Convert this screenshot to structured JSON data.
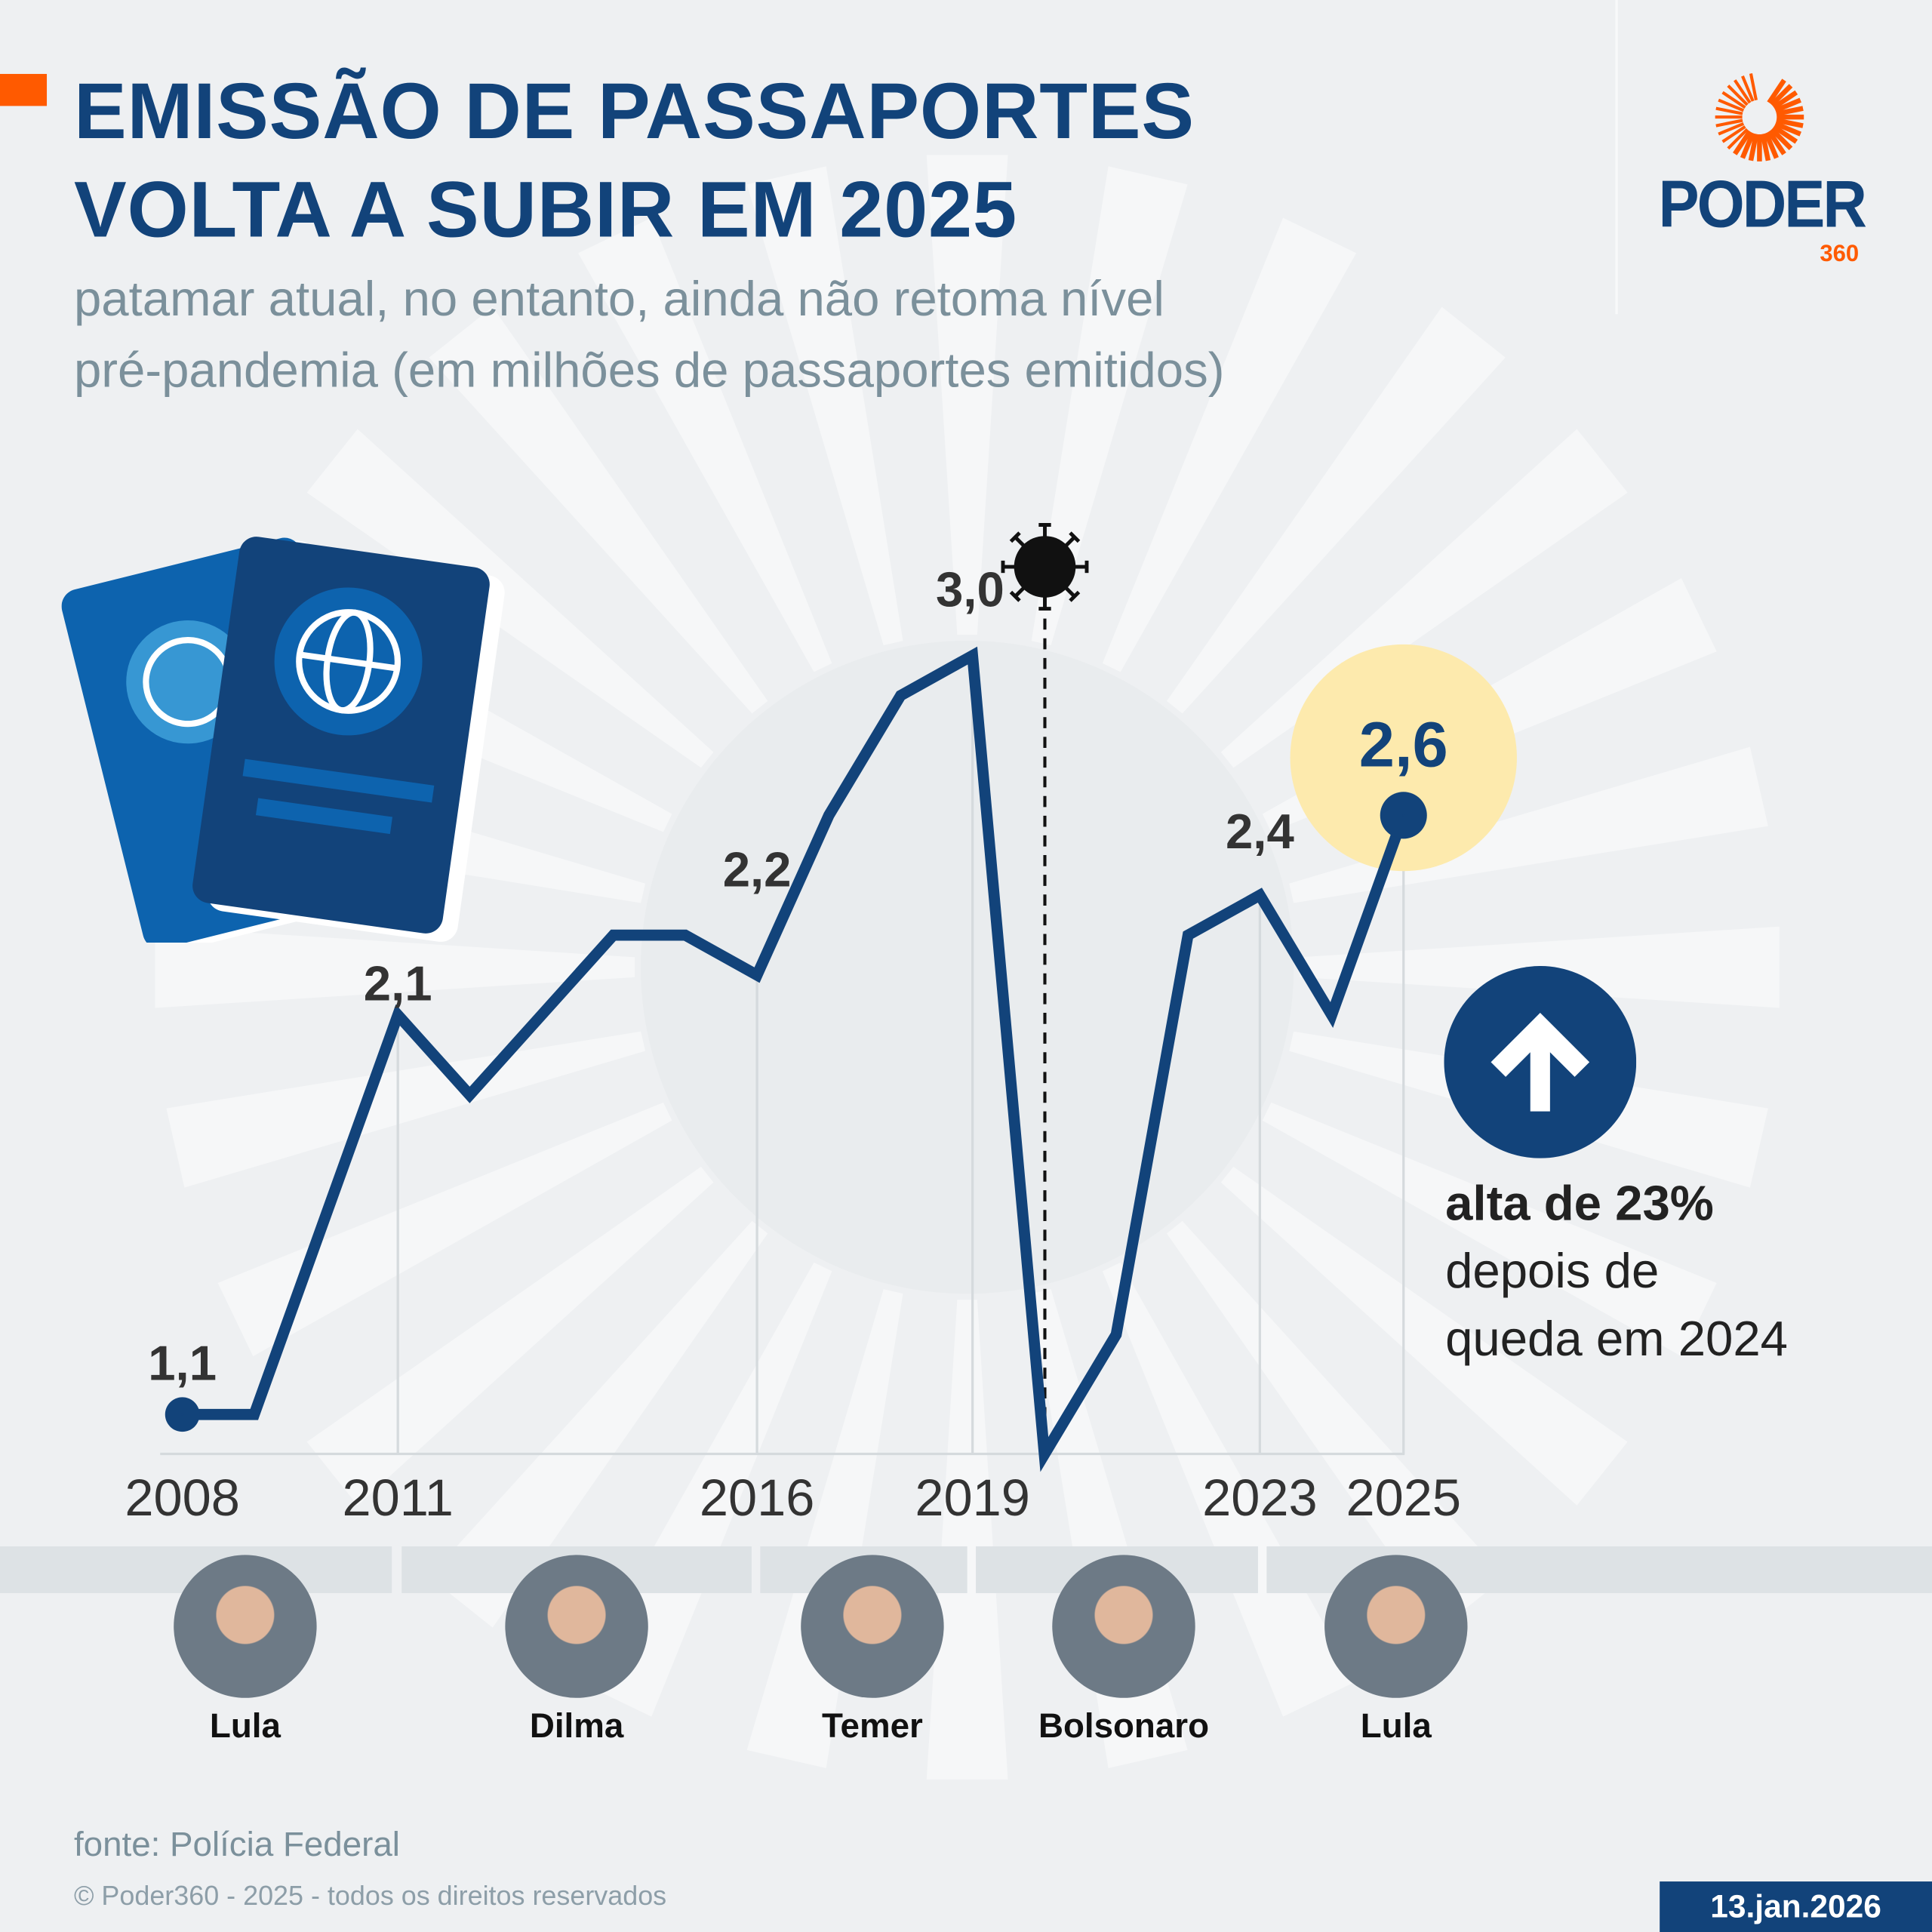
{
  "header": {
    "title_line1": "EMISSÃO DE PASSAPORTES",
    "title_line2": "VOLTA A SUBIR EM 2025",
    "subtitle_line1": "patamar atual, no entanto, ainda não retoma nível",
    "subtitle_line2": "pré-pandemia (em milhões de passaportes emitidos)",
    "logo_text": "PODER",
    "logo_number": "360"
  },
  "colors": {
    "navy": "#12437a",
    "orange": "#ff5a00",
    "highlight": "#fdeaad",
    "text_gray": "#7b909b",
    "background": "#eef0f2"
  },
  "chart_data": {
    "type": "line",
    "x": [
      2008,
      2009,
      2010,
      2011,
      2012,
      2013,
      2014,
      2015,
      2016,
      2017,
      2018,
      2019,
      2020,
      2021,
      2022,
      2023,
      2024,
      2025
    ],
    "values": [
      1.1,
      1.1,
      1.6,
      2.1,
      1.9,
      2.1,
      2.3,
      2.3,
      2.2,
      2.6,
      2.9,
      3.0,
      1.0,
      1.3,
      2.3,
      2.4,
      2.1,
      2.6
    ],
    "unit": "milhões de passaportes emitidos",
    "x_tick_labels": [
      "2008",
      "2011",
      "2016",
      "2019",
      "2023",
      "2025"
    ],
    "data_labels": [
      {
        "year": 2008,
        "label": "1,1"
      },
      {
        "year": 2011,
        "label": "2,1"
      },
      {
        "year": 2016,
        "label": "2,2"
      },
      {
        "year": 2019,
        "label": "3,0"
      },
      {
        "year": 2023,
        "label": "2,4"
      },
      {
        "year": 2025,
        "label": "2,6",
        "highlight": true
      }
    ],
    "annotation": {
      "year": 2020,
      "icon": "virus-icon",
      "style": "dashed-line"
    },
    "grid": false
  },
  "callout": {
    "icon": "arrow-up-icon",
    "bold": "alta de 23%",
    "line2": "depois de",
    "line3": "queda em 2024"
  },
  "presidents": [
    {
      "name": "Lula"
    },
    {
      "name": "Dilma"
    },
    {
      "name": "Temer"
    },
    {
      "name": "Bolsonaro"
    },
    {
      "name": "Lula"
    }
  ],
  "footer": {
    "source": "fonte: Polícia Federal",
    "copyright": "© Poder360 - 2025 - todos os direitos reservados",
    "date": "13.jan.2026"
  }
}
